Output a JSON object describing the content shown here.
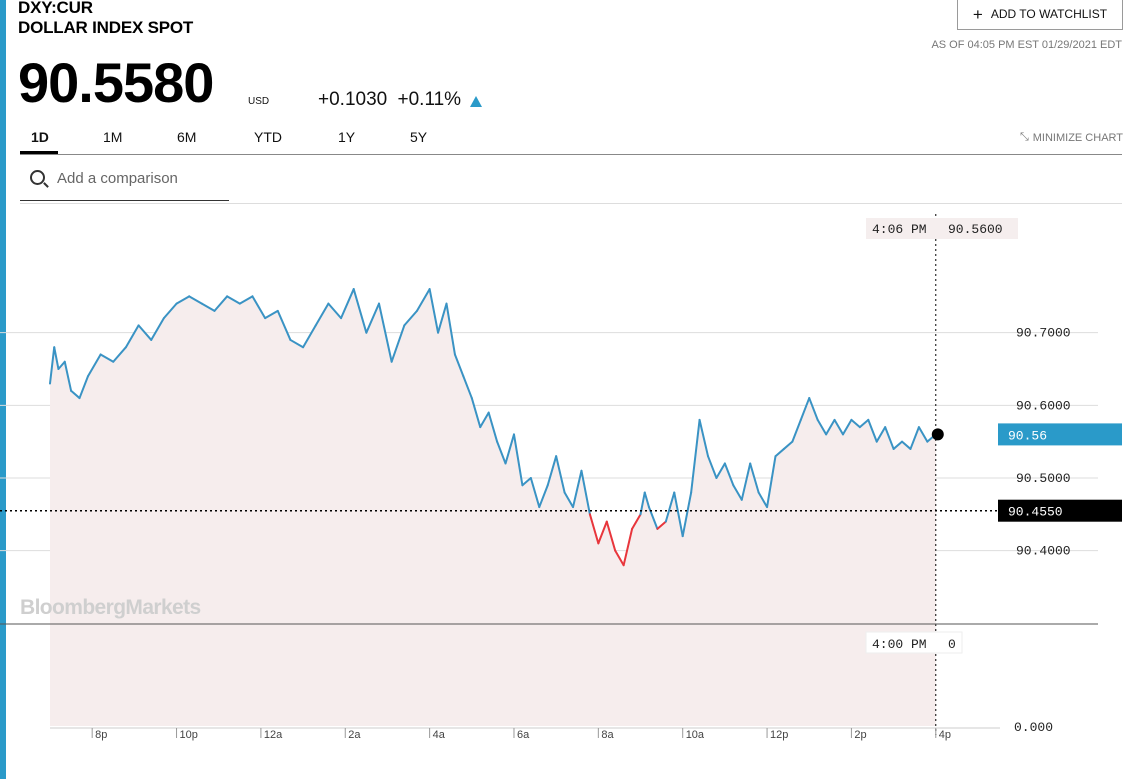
{
  "header": {
    "ticker": "DXY:CUR",
    "name": "DOLLAR INDEX SPOT",
    "watchlist_label": "ADD TO WATCHLIST",
    "as_of": "AS OF 04:05 PM EST 01/29/2021 EDT",
    "price": "90.5580",
    "currency": "USD",
    "change_abs": "+0.1030",
    "change_pct": "+0.11%"
  },
  "tabs": [
    {
      "label": "1D",
      "active": true
    },
    {
      "label": "1M",
      "active": false
    },
    {
      "label": "6M",
      "active": false
    },
    {
      "label": "YTD",
      "active": false
    },
    {
      "label": "1Y",
      "active": false
    },
    {
      "label": "5Y",
      "active": false
    }
  ],
  "minimize_label": "MINIMIZE CHART",
  "search": {
    "placeholder": "Add a comparison"
  },
  "colors": {
    "accent": "#2a9ac9",
    "line": "#3a93c4",
    "down": "#e8363c",
    "fill": "#f6eded"
  },
  "watermark": "BloombergMarkets",
  "chart_data": {
    "type": "line",
    "prev_close": 90.455,
    "last_value": 90.56,
    "last_label": "90.56",
    "prev_close_label": "90.4550",
    "crosshair_time": "4:06 PM",
    "crosshair_value": "90.5600",
    "volume_time": "4:00 PM",
    "volume_value": "0",
    "y_ticks": [
      "90.7000",
      "90.6000",
      "90.5000",
      "90.4000"
    ],
    "y_tick_values": [
      90.7,
      90.6,
      90.5,
      90.4
    ],
    "volume_tick": "0.000",
    "ylim": [
      90.35,
      90.8
    ],
    "x_ticks": [
      "8p",
      "10p",
      "12a",
      "2a",
      "4a",
      "6a",
      "8a",
      "10a",
      "12p",
      "2p",
      "4p"
    ],
    "x_range_hours": [
      19.0,
      40.1
    ],
    "x": [
      19.0,
      19.1,
      19.2,
      19.35,
      19.5,
      19.7,
      19.9,
      20.2,
      20.5,
      20.8,
      21.1,
      21.4,
      21.7,
      22.0,
      22.3,
      22.6,
      22.9,
      23.2,
      23.5,
      23.8,
      24.1,
      24.4,
      24.7,
      25.0,
      25.3,
      25.6,
      25.9,
      26.2,
      26.5,
      26.8,
      27.1,
      27.4,
      27.7,
      28.0,
      28.2,
      28.4,
      28.6,
      28.8,
      29.0,
      29.2,
      29.4,
      29.6,
      29.8,
      30.0,
      30.2,
      30.4,
      30.6,
      30.8,
      31.0,
      31.2,
      31.4,
      31.6,
      31.8,
      32.0,
      32.2,
      32.4,
      32.6,
      32.8,
      33.0,
      33.1,
      33.2,
      33.4,
      33.6,
      33.8,
      34.0,
      34.2,
      34.4,
      34.6,
      34.8,
      35.0,
      35.2,
      35.4,
      35.6,
      35.8,
      36.0,
      36.2,
      36.4,
      36.6,
      36.8,
      37.0,
      37.2,
      37.4,
      37.6,
      37.8,
      38.0,
      38.2,
      38.4,
      38.6,
      38.8,
      39.0,
      39.2,
      39.4,
      39.6,
      39.8,
      40.0
    ],
    "values": [
      90.63,
      90.68,
      90.65,
      90.66,
      90.62,
      90.61,
      90.64,
      90.67,
      90.66,
      90.68,
      90.71,
      90.69,
      90.72,
      90.74,
      90.75,
      90.74,
      90.73,
      90.75,
      90.74,
      90.75,
      90.72,
      90.73,
      90.69,
      90.68,
      90.71,
      90.74,
      90.72,
      90.76,
      90.7,
      90.74,
      90.66,
      90.71,
      90.73,
      90.76,
      90.7,
      90.74,
      90.67,
      90.64,
      90.61,
      90.57,
      90.59,
      90.55,
      90.52,
      90.56,
      90.49,
      90.5,
      90.46,
      90.49,
      90.53,
      90.48,
      90.46,
      90.51,
      90.45,
      90.41,
      90.44,
      90.4,
      90.38,
      90.43,
      90.45,
      90.48,
      90.46,
      90.43,
      90.44,
      90.48,
      90.42,
      90.48,
      90.58,
      90.53,
      90.5,
      90.52,
      90.49,
      90.47,
      90.52,
      90.48,
      90.46,
      90.53,
      90.54,
      90.55,
      90.58,
      90.61,
      90.58,
      90.56,
      90.58,
      90.56,
      90.58,
      90.57,
      90.58,
      90.55,
      90.57,
      90.54,
      90.55,
      90.54,
      90.57,
      90.55,
      90.56
    ]
  }
}
